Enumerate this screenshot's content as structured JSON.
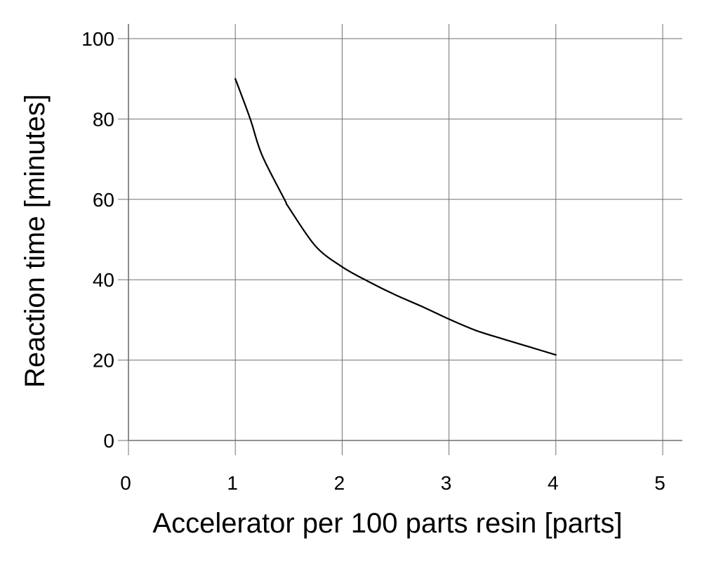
{
  "chart_data": {
    "type": "line",
    "title": "",
    "xlabel": "Accelerator per 100 parts resin [parts]",
    "ylabel": "Reaction time [minutes]",
    "xlim": [
      0,
      5
    ],
    "ylim": [
      0,
      100
    ],
    "xticks": [
      0,
      1,
      2,
      3,
      4,
      5
    ],
    "yticks": [
      0,
      20,
      40,
      60,
      80,
      100
    ],
    "xtick_labels": [
      "0",
      "1",
      "2",
      "3",
      "4",
      "5"
    ],
    "ytick_labels": [
      "0",
      "20",
      "40",
      "60",
      "80",
      "100"
    ],
    "grid": true,
    "legend": null,
    "series": [
      {
        "name": "Reaction time",
        "color": "#000000",
        "x": [
          1.0,
          1.14,
          1.25,
          1.46,
          1.5,
          1.75,
          2.0,
          2.25,
          2.5,
          2.75,
          3.0,
          3.25,
          3.5,
          3.75,
          4.0
        ],
        "y": [
          90,
          80,
          71,
          60,
          58,
          48.4,
          43.2,
          39.5,
          36.2,
          33.3,
          30.2,
          27.4,
          25.3,
          23.3,
          21.3
        ]
      }
    ]
  },
  "style": {
    "grid_color": "#707070",
    "line_color": "#000000"
  }
}
